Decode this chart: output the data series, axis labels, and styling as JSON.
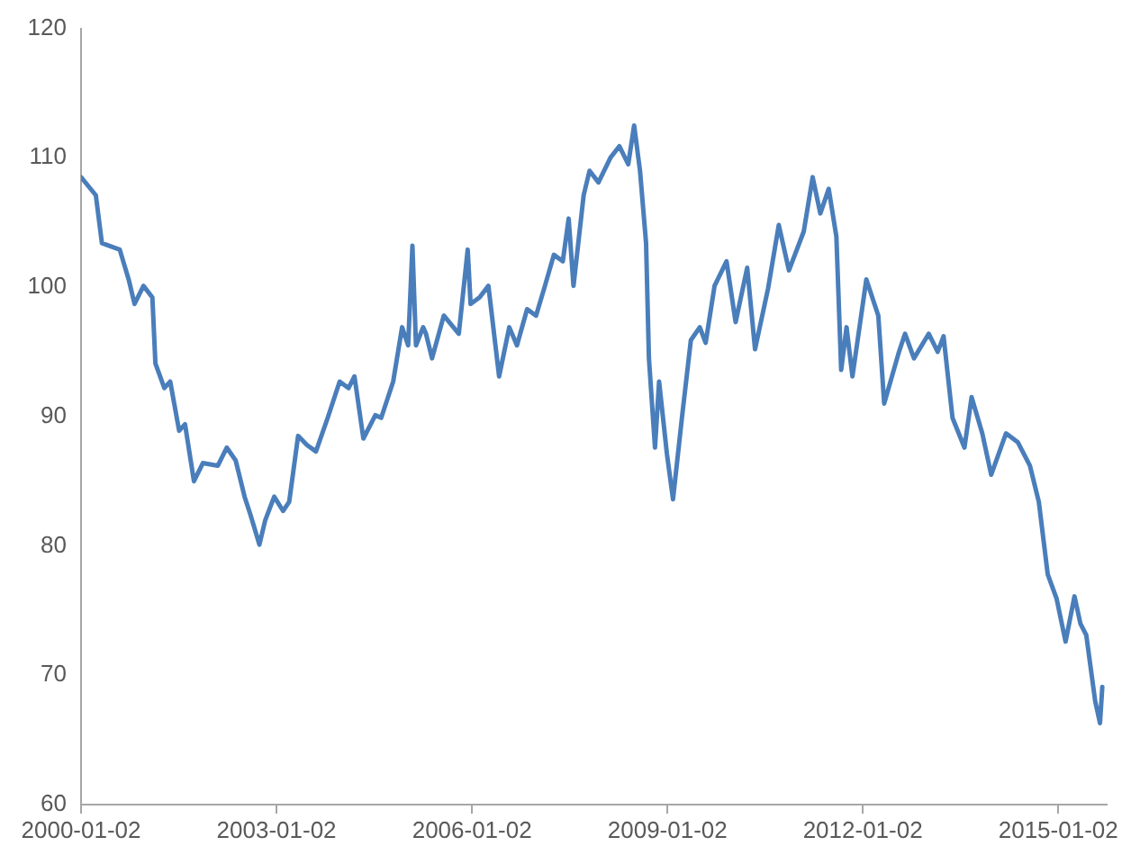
{
  "chart_data": {
    "type": "line",
    "x": [
      "2000-01-02",
      "2000-03-25",
      "2000-04-28",
      "2000-08-06",
      "2000-09-25",
      "2000-10-28",
      "2000-12-17",
      "2001-02-05",
      "2001-02-22",
      "2001-04-13",
      "2001-05-16",
      "2001-07-05",
      "2001-08-07",
      "2001-09-26",
      "2001-11-15",
      "2002-02-07",
      "2002-03-29",
      "2002-05-18",
      "2002-07-07",
      "2002-08-09",
      "2002-09-28",
      "2002-10-31",
      "2002-12-20",
      "2003-02-08",
      "2003-03-14",
      "2003-05-03",
      "2003-06-22",
      "2003-08-11",
      "2003-10-16",
      "2003-12-22",
      "2004-02-10",
      "2004-03-14",
      "2004-05-03",
      "2004-07-09",
      "2004-08-11",
      "2004-10-17",
      "2004-12-06",
      "2005-01-09",
      "2005-02-02",
      "2005-02-22",
      "2005-04-03",
      "2005-04-19",
      "2005-05-23",
      "2005-07-28",
      "2005-10-20",
      "2005-12-09",
      "2005-12-25",
      "2006-02-13",
      "2006-04-04",
      "2006-06-03",
      "2006-07-30",
      "2006-09-11",
      "2006-11-07",
      "2006-12-27",
      "2007-02-15",
      "2007-04-06",
      "2007-05-26",
      "2007-06-28",
      "2007-07-25",
      "2007-09-20",
      "2007-10-23",
      "2007-12-12",
      "2008-02-17",
      "2008-04-07",
      "2008-05-27",
      "2008-06-29",
      "2008-08-01",
      "2008-09-04",
      "2008-09-20",
      "2008-10-24",
      "2008-11-16",
      "2008-12-30",
      "2009-02-02",
      "2009-03-24",
      "2009-05-13",
      "2009-07-02",
      "2009-08-04",
      "2009-09-23",
      "2009-11-29",
      "2010-01-19",
      "2010-03-25",
      "2010-05-08",
      "2010-07-20",
      "2010-09-18",
      "2010-11-14",
      "2011-02-05",
      "2011-03-27",
      "2011-05-09",
      "2011-06-25",
      "2011-08-07",
      "2011-09-03",
      "2011-10-03",
      "2011-11-05",
      "2012-01-22",
      "2012-03-29",
      "2012-05-01",
      "2012-07-23",
      "2012-08-26",
      "2012-10-15",
      "2013-01-06",
      "2013-02-25",
      "2013-03-30",
      "2013-05-19",
      "2013-07-25",
      "2013-09-03",
      "2013-11-02",
      "2013-12-22",
      "2014-03-15",
      "2014-05-21",
      "2014-07-27",
      "2014-09-15",
      "2014-11-04",
      "2014-12-24",
      "2015-02-12",
      "2015-04-03",
      "2015-05-06",
      "2015-06-08",
      "2015-07-28",
      "2015-08-24",
      "2015-09-06"
    ],
    "series": [
      {
        "color": "#4a7ebb",
        "values": [
          108.5,
          107.1,
          103.4,
          102.9,
          100.6,
          98.7,
          100.1,
          99.2,
          94.1,
          92.2,
          92.7,
          88.9,
          89.4,
          85.0,
          86.4,
          86.2,
          87.6,
          86.6,
          83.8,
          82.4,
          80.1,
          82.0,
          83.8,
          82.7,
          83.4,
          88.5,
          87.8,
          87.3,
          89.9,
          92.7,
          92.2,
          93.1,
          88.3,
          90.1,
          89.9,
          92.7,
          96.9,
          95.5,
          103.2,
          95.5,
          96.9,
          96.4,
          94.5,
          97.8,
          96.4,
          102.9,
          98.7,
          99.2,
          100.1,
          93.1,
          96.9,
          95.5,
          98.3,
          97.8,
          100.1,
          102.5,
          102.0,
          105.3,
          100.1,
          107.1,
          109.0,
          108.1,
          110.0,
          110.9,
          109.5,
          112.5,
          109.0,
          103.4,
          94.5,
          87.6,
          92.7,
          87.1,
          83.6,
          89.9,
          95.9,
          96.9,
          95.7,
          100.1,
          102.0,
          97.3,
          101.5,
          95.2,
          99.9,
          104.8,
          101.3,
          104.3,
          108.5,
          105.7,
          107.6,
          103.9,
          93.6,
          96.9,
          93.1,
          100.6,
          97.8,
          91.0,
          95.0,
          96.4,
          94.5,
          96.4,
          95.0,
          96.2,
          89.9,
          87.6,
          91.5,
          88.7,
          85.5,
          88.7,
          88.0,
          86.2,
          83.4,
          77.8,
          75.9,
          72.6,
          76.1,
          74.0,
          73.1,
          68.0,
          66.3,
          69.1
        ]
      }
    ],
    "xlim": [
      "2000-01-02",
      "2015-10-02"
    ],
    "xticks": [
      "2000-01-02",
      "2003-01-02",
      "2006-01-02",
      "2009-01-02",
      "2012-01-02",
      "2015-01-02"
    ],
    "ylim": [
      60,
      120
    ],
    "yticks": [
      60,
      70,
      80,
      90,
      100,
      110,
      120
    ],
    "marker": "none",
    "line_style": "solid"
  }
}
